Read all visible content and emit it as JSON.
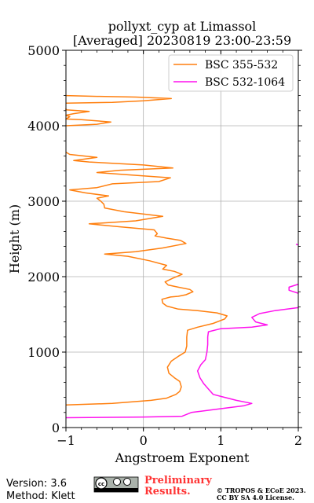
{
  "chart_data": {
    "type": "line",
    "title_line1": "pollyxt_cyp at Limassol",
    "title_line2": "[Averaged] 20230819 23:00-23:59",
    "xlabel": "Angstroem Exponent",
    "ylabel": "Height (m)",
    "xlim": [
      -1,
      2
    ],
    "ylim": [
      0,
      5000
    ],
    "xticks": [
      -1,
      0,
      1,
      2
    ],
    "yticks": [
      0,
      1000,
      2000,
      3000,
      4000,
      5000
    ],
    "xtick_labels": [
      "−1",
      "0",
      "1",
      "2"
    ],
    "ytick_labels": [
      "0",
      "1000",
      "2000",
      "3000",
      "4000",
      "5000"
    ],
    "grid": true,
    "legend_position": "top-right",
    "series": [
      {
        "name": "BSC 355-532",
        "color": "#ff7f0e",
        "points": [
          [
            -1.0,
            300
          ],
          [
            -0.4,
            320
          ],
          [
            0.1,
            360
          ],
          [
            0.3,
            390
          ],
          [
            0.42,
            440
          ],
          [
            0.47,
            480
          ],
          [
            0.49,
            540
          ],
          [
            0.47,
            610
          ],
          [
            0.4,
            660
          ],
          [
            0.33,
            720
          ],
          [
            0.31,
            800
          ],
          [
            0.36,
            880
          ],
          [
            0.46,
            950
          ],
          [
            0.54,
            1000
          ],
          [
            0.56,
            1080
          ],
          [
            0.56,
            1200
          ],
          [
            0.57,
            1290
          ],
          [
            0.7,
            1330
          ],
          [
            0.9,
            1380
          ],
          [
            1.05,
            1440
          ],
          [
            1.08,
            1480
          ],
          [
            0.95,
            1520
          ],
          [
            0.7,
            1550
          ],
          [
            0.45,
            1570
          ],
          [
            0.3,
            1610
          ],
          [
            0.25,
            1650
          ],
          [
            0.24,
            1700
          ],
          [
            0.35,
            1730
          ],
          [
            0.45,
            1740
          ],
          [
            0.55,
            1760
          ],
          [
            0.64,
            1800
          ],
          [
            0.6,
            1830
          ],
          [
            0.45,
            1860
          ],
          [
            0.32,
            1890
          ],
          [
            0.28,
            1930
          ],
          [
            0.38,
            1980
          ],
          [
            0.5,
            2030
          ],
          [
            0.4,
            2070
          ],
          [
            0.25,
            2100
          ],
          [
            0.3,
            2150
          ],
          [
            0.08,
            2210
          ],
          [
            -0.2,
            2270
          ],
          [
            -0.5,
            2300
          ],
          [
            -0.1,
            2330
          ],
          [
            0.25,
            2380
          ],
          [
            0.55,
            2440
          ],
          [
            0.48,
            2480
          ],
          [
            0.3,
            2510
          ],
          [
            0.15,
            2540
          ],
          [
            0.18,
            2570
          ],
          [
            0.14,
            2620
          ],
          [
            -0.3,
            2660
          ],
          [
            -0.7,
            2700
          ],
          [
            -0.1,
            2740
          ],
          [
            0.25,
            2800
          ],
          [
            -0.25,
            2860
          ],
          [
            -0.5,
            2910
          ],
          [
            -0.51,
            2960
          ],
          [
            -0.55,
            3000
          ],
          [
            -0.6,
            3040
          ],
          [
            -0.45,
            3070
          ],
          [
            -0.75,
            3110
          ],
          [
            -0.95,
            3150
          ],
          [
            -0.6,
            3180
          ],
          [
            -0.4,
            3230
          ],
          [
            0.2,
            3260
          ],
          [
            0.35,
            3310
          ],
          [
            -0.2,
            3350
          ],
          [
            -0.6,
            3380
          ],
          [
            -0.3,
            3410
          ],
          [
            0.38,
            3440
          ],
          [
            0.0,
            3480
          ],
          [
            -0.7,
            3520
          ],
          [
            -0.9,
            3540
          ],
          [
            -0.6,
            3580
          ],
          [
            -0.95,
            3620
          ],
          [
            -1.0,
            3650
          ]
        ]
      },
      {
        "name": "BSC 355-532 (upper)",
        "color": "#ff7f0e",
        "points": [
          [
            -1.0,
            4000
          ],
          [
            -0.6,
            4020
          ],
          [
            -0.42,
            4050
          ],
          [
            -0.8,
            4080
          ],
          [
            -1.0,
            4090
          ],
          [
            -0.95,
            4120
          ],
          [
            -1.0,
            4140
          ],
          [
            -0.9,
            4160
          ],
          [
            -0.7,
            4190
          ],
          [
            -1.0,
            4210
          ],
          [
            -1.0,
            4230
          ]
        ]
      },
      {
        "name": "BSC 355-532 (top)",
        "color": "#ff7f0e",
        "points": [
          [
            -1.0,
            4300
          ],
          [
            -0.4,
            4310
          ],
          [
            0.0,
            4330
          ],
          [
            0.36,
            4360
          ],
          [
            -0.1,
            4380
          ],
          [
            -0.6,
            4390
          ],
          [
            -1.0,
            4400
          ]
        ]
      },
      {
        "name": "BSC 532-1064",
        "color": "#ff11ee",
        "points": [
          [
            -1.0,
            130
          ],
          [
            0.0,
            140
          ],
          [
            0.5,
            150
          ],
          [
            0.62,
            200
          ],
          [
            1.0,
            250
          ],
          [
            1.3,
            290
          ],
          [
            1.4,
            320
          ],
          [
            1.2,
            360
          ],
          [
            1.05,
            400
          ],
          [
            0.9,
            440
          ],
          [
            0.84,
            510
          ],
          [
            0.78,
            580
          ],
          [
            0.73,
            660
          ],
          [
            0.7,
            750
          ],
          [
            0.74,
            830
          ],
          [
            0.8,
            900
          ],
          [
            0.82,
            1000
          ],
          [
            0.83,
            1100
          ],
          [
            0.83,
            1200
          ],
          [
            0.84,
            1270
          ],
          [
            1.0,
            1310
          ],
          [
            1.4,
            1330
          ],
          [
            1.6,
            1360
          ],
          [
            1.45,
            1400
          ],
          [
            1.4,
            1460
          ],
          [
            1.5,
            1510
          ],
          [
            1.7,
            1550
          ],
          [
            2.0,
            1590
          ]
        ]
      },
      {
        "name": "BSC 532-1064 (upper)",
        "color": "#ff11ee",
        "points": [
          [
            2.0,
            1780
          ],
          [
            1.88,
            1820
          ],
          [
            1.88,
            1860
          ],
          [
            2.0,
            1900
          ]
        ]
      },
      {
        "name": "BSC 532-1064 (top)",
        "color": "#ff11ee",
        "points": [
          [
            1.97,
            2430
          ],
          [
            2.0,
            2420
          ]
        ]
      }
    ],
    "legend": [
      {
        "label": "BSC 355-532",
        "color": "#ff7f0e"
      },
      {
        "label": "BSC 532-1064",
        "color": "#ff11ee"
      }
    ]
  },
  "footer": {
    "version": "Version: 3.6",
    "method": "Method: Klett",
    "preliminary_line1": "Preliminary",
    "preliminary_line2": "Results.",
    "copyright_line1": "© TROPOS & ECoE 2023.",
    "copyright_line2": "CC BY SA 4.0 License.",
    "license_badge": "cc-by-sa-badge",
    "accent_color": "#ff3333"
  }
}
